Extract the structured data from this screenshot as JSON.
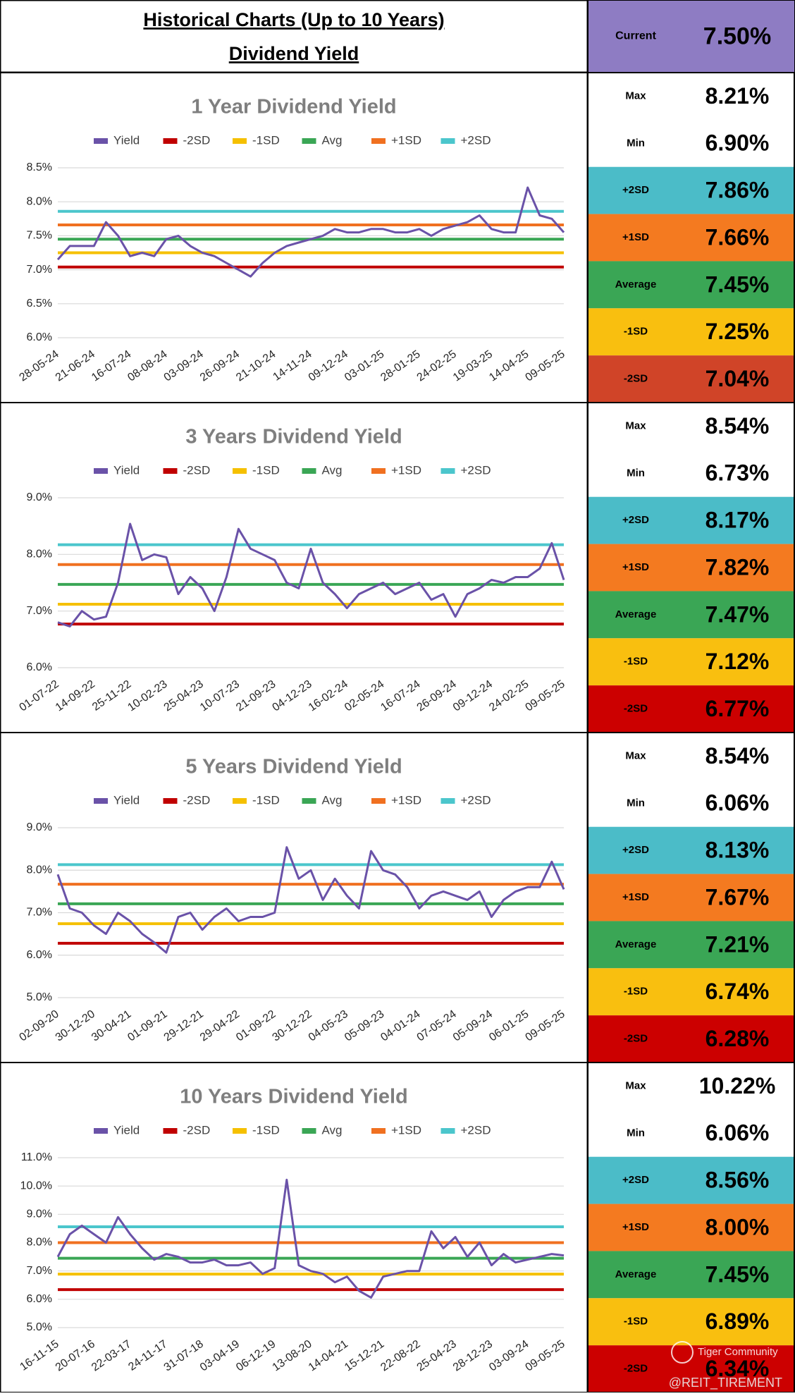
{
  "header": {
    "title": "Historical Charts (Up to 10 Years)",
    "subtitle": "Dividend Yield",
    "current": {
      "label": "Current",
      "value": 7.5,
      "value_label": "7.50%",
      "color": "#8e7cc3"
    }
  },
  "chart_data": [
    {
      "type": "line",
      "title": "1 Year Dividend Yield",
      "categories": [
        "28-05-24",
        null,
        null,
        "21-06-24",
        null,
        null,
        "16-07-24",
        null,
        null,
        "08-08-24",
        null,
        null,
        "03-09-24",
        null,
        null,
        "26-09-24",
        null,
        null,
        "21-10-24",
        null,
        null,
        "14-11-24",
        null,
        null,
        "09-12-24",
        null,
        null,
        "03-01-25",
        null,
        null,
        "28-01-25",
        null,
        null,
        "24-02-25",
        null,
        null,
        "19-03-25",
        null,
        null,
        "14-04-25",
        null,
        null,
        "09-05-25"
      ],
      "series": [
        {
          "name": "Yield",
          "color": "#6a52a8",
          "values": [
            7.15,
            7.35,
            7.35,
            7.35,
            7.7,
            7.5,
            7.2,
            7.25,
            7.2,
            7.45,
            7.5,
            7.35,
            7.25,
            7.2,
            7.1,
            7.0,
            6.9,
            7.1,
            7.25,
            7.35,
            7.4,
            7.45,
            7.5,
            7.6,
            7.55,
            7.55,
            7.6,
            7.6,
            7.55,
            7.55,
            7.6,
            7.5,
            7.6,
            7.65,
            7.7,
            7.8,
            7.6,
            7.55,
            7.55,
            8.21,
            7.8,
            7.75,
            7.55
          ]
        }
      ],
      "reference_lines": [
        {
          "name": "-2SD",
          "table_label": "-2SD",
          "color": "#c00000",
          "cell_color": "#d04428",
          "value": 7.04,
          "value_label": "7.04%"
        },
        {
          "name": "-1SD",
          "table_label": "-1SD",
          "color": "#f5c000",
          "cell_color": "#f9bf0f",
          "value": 7.25,
          "value_label": "7.25%"
        },
        {
          "name": "Avg",
          "table_label": "Average",
          "color": "#3aa655",
          "cell_color": "#3aa655",
          "value": 7.45,
          "value_label": "7.45%"
        },
        {
          "name": "+1SD",
          "table_label": "+1SD",
          "color": "#f07020",
          "cell_color": "#f47a20",
          "value": 7.66,
          "value_label": "7.66%"
        },
        {
          "name": "+2SD",
          "table_label": "+2SD",
          "color": "#4bc6cc",
          "cell_color": "#4bbcc8",
          "value": 7.86,
          "value_label": "7.86%"
        }
      ],
      "stats": [
        {
          "label": "Max",
          "value": 8.21,
          "value_label": "8.21%"
        },
        {
          "label": "Min",
          "value": 6.9,
          "value_label": "6.90%"
        }
      ],
      "ylim": [
        6,
        8.5
      ],
      "yticks": [
        {
          "value": 6,
          "label": "6.0%"
        },
        {
          "value": 6.5,
          "label": "6.5%"
        },
        {
          "value": 7,
          "label": "7.0%"
        },
        {
          "value": 7.5,
          "label": "7.5%"
        },
        {
          "value": 8,
          "label": "8.0%"
        },
        {
          "value": 8.5,
          "label": "8.5%"
        }
      ],
      "grid": true
    },
    {
      "type": "line",
      "title": "3 Years Dividend Yield",
      "categories": [
        "01-07-22",
        null,
        null,
        "14-09-22",
        null,
        null,
        "25-11-22",
        null,
        null,
        "10-02-23",
        null,
        null,
        "25-04-23",
        null,
        null,
        "10-07-23",
        null,
        null,
        "21-09-23",
        null,
        null,
        "04-12-23",
        null,
        null,
        "16-02-24",
        null,
        null,
        "02-05-24",
        null,
        null,
        "16-07-24",
        null,
        null,
        "26-09-24",
        null,
        null,
        "09-12-24",
        null,
        null,
        "24-02-25",
        null,
        null,
        "09-05-25"
      ],
      "series": [
        {
          "name": "Yield",
          "color": "#6a52a8",
          "values": [
            6.8,
            6.73,
            7.0,
            6.85,
            6.9,
            7.5,
            8.54,
            7.9,
            8.0,
            7.95,
            7.3,
            7.6,
            7.4,
            7.0,
            7.6,
            8.45,
            8.1,
            8.0,
            7.9,
            7.5,
            7.4,
            8.1,
            7.5,
            7.3,
            7.05,
            7.3,
            7.4,
            7.5,
            7.3,
            7.4,
            7.5,
            7.2,
            7.3,
            6.9,
            7.3,
            7.4,
            7.55,
            7.5,
            7.6,
            7.6,
            7.75,
            8.2,
            7.55
          ]
        }
      ],
      "reference_lines": [
        {
          "name": "-2SD",
          "table_label": "-2SD",
          "color": "#c00000",
          "cell_color": "#cc0000",
          "value": 6.77,
          "value_label": "6.77%"
        },
        {
          "name": "-1SD",
          "table_label": "-1SD",
          "color": "#f5c000",
          "cell_color": "#f9bf0f",
          "value": 7.12,
          "value_label": "7.12%"
        },
        {
          "name": "Avg",
          "table_label": "Average",
          "color": "#3aa655",
          "cell_color": "#3aa655",
          "value": 7.47,
          "value_label": "7.47%"
        },
        {
          "name": "+1SD",
          "table_label": "+1SD",
          "color": "#f07020",
          "cell_color": "#f47a20",
          "value": 7.82,
          "value_label": "7.82%"
        },
        {
          "name": "+2SD",
          "table_label": "+2SD",
          "color": "#4bc6cc",
          "cell_color": "#4bbcc8",
          "value": 8.17,
          "value_label": "8.17%"
        }
      ],
      "stats": [
        {
          "label": "Max",
          "value": 8.54,
          "value_label": "8.54%"
        },
        {
          "label": "Min",
          "value": 6.73,
          "value_label": "6.73%"
        }
      ],
      "ylim": [
        6,
        9
      ],
      "yticks": [
        {
          "value": 6,
          "label": "6.0%"
        },
        {
          "value": 7,
          "label": "7.0%"
        },
        {
          "value": 8,
          "label": "8.0%"
        },
        {
          "value": 9,
          "label": "9.0%"
        }
      ],
      "grid": true
    },
    {
      "type": "line",
      "title": "5 Years Dividend Yield",
      "categories": [
        "02-09-20",
        null,
        null,
        "30-12-20",
        null,
        null,
        "30-04-21",
        null,
        null,
        "01-09-21",
        null,
        null,
        "29-12-21",
        null,
        null,
        "29-04-22",
        null,
        null,
        "01-09-22",
        null,
        null,
        "30-12-22",
        null,
        null,
        "04-05-23",
        null,
        null,
        "05-09-23",
        null,
        null,
        "04-01-24",
        null,
        null,
        "07-05-24",
        null,
        null,
        "05-09-24",
        null,
        null,
        "06-01-25",
        null,
        null,
        "09-05-25"
      ],
      "series": [
        {
          "name": "Yield",
          "color": "#6a52a8",
          "values": [
            7.9,
            7.1,
            7.0,
            6.7,
            6.5,
            7.0,
            6.8,
            6.5,
            6.3,
            6.06,
            6.9,
            7.0,
            6.6,
            6.9,
            7.1,
            6.8,
            6.9,
            6.9,
            7.0,
            8.54,
            7.8,
            8.0,
            7.3,
            7.8,
            7.4,
            7.1,
            8.45,
            8.0,
            7.9,
            7.6,
            7.1,
            7.4,
            7.5,
            7.4,
            7.3,
            7.5,
            6.9,
            7.3,
            7.5,
            7.6,
            7.6,
            8.2,
            7.55
          ]
        }
      ],
      "reference_lines": [
        {
          "name": "-2SD",
          "table_label": "-2SD",
          "color": "#c00000",
          "cell_color": "#cc0000",
          "value": 6.28,
          "value_label": "6.28%"
        },
        {
          "name": "-1SD",
          "table_label": "-1SD",
          "color": "#f5c000",
          "cell_color": "#f9bf0f",
          "value": 6.74,
          "value_label": "6.74%"
        },
        {
          "name": "Avg",
          "table_label": "Average",
          "color": "#3aa655",
          "cell_color": "#3aa655",
          "value": 7.21,
          "value_label": "7.21%"
        },
        {
          "name": "+1SD",
          "table_label": "+1SD",
          "color": "#f07020",
          "cell_color": "#f47a20",
          "value": 7.67,
          "value_label": "7.67%"
        },
        {
          "name": "+2SD",
          "table_label": "+2SD",
          "color": "#4bc6cc",
          "cell_color": "#4bbcc8",
          "value": 8.13,
          "value_label": "8.13%"
        }
      ],
      "stats": [
        {
          "label": "Max",
          "value": 8.54,
          "value_label": "8.54%"
        },
        {
          "label": "Min",
          "value": 6.06,
          "value_label": "6.06%"
        }
      ],
      "ylim": [
        5,
        9
      ],
      "yticks": [
        {
          "value": 5,
          "label": "5.0%"
        },
        {
          "value": 6,
          "label": "6.0%"
        },
        {
          "value": 7,
          "label": "7.0%"
        },
        {
          "value": 8,
          "label": "8.0%"
        },
        {
          "value": 9,
          "label": "9.0%"
        }
      ],
      "grid": true
    },
    {
      "type": "line",
      "title": "10 Years Dividend Yield",
      "categories": [
        "16-11-15",
        null,
        null,
        "20-07-16",
        null,
        null,
        "22-03-17",
        null,
        null,
        "24-11-17",
        null,
        null,
        "31-07-18",
        null,
        null,
        "03-04-19",
        null,
        null,
        "06-12-19",
        null,
        null,
        "13-08-20",
        null,
        null,
        "14-04-21",
        null,
        null,
        "15-12-21",
        null,
        null,
        "22-08-22",
        null,
        null,
        "25-04-23",
        null,
        null,
        "28-12-23",
        null,
        null,
        "03-09-24",
        null,
        null,
        "09-05-25"
      ],
      "series": [
        {
          "name": "Yield",
          "color": "#6a52a8",
          "values": [
            7.5,
            8.3,
            8.6,
            8.3,
            8.0,
            8.9,
            8.3,
            7.8,
            7.4,
            7.6,
            7.5,
            7.3,
            7.3,
            7.4,
            7.2,
            7.2,
            7.3,
            6.9,
            7.1,
            10.22,
            7.2,
            7.0,
            6.9,
            6.6,
            6.8,
            6.3,
            6.06,
            6.8,
            6.9,
            7.0,
            7.0,
            8.4,
            7.8,
            8.2,
            7.5,
            8.0,
            7.2,
            7.6,
            7.3,
            7.4,
            7.5,
            7.6,
            7.55
          ]
        }
      ],
      "reference_lines": [
        {
          "name": "-2SD",
          "table_label": "-2SD",
          "color": "#c00000",
          "cell_color": "#cc0000",
          "value": 6.34,
          "value_label": "6.34%"
        },
        {
          "name": "-1SD",
          "table_label": "-1SD",
          "color": "#f5c000",
          "cell_color": "#f9bf0f",
          "value": 6.89,
          "value_label": "6.89%"
        },
        {
          "name": "Avg",
          "table_label": "Average",
          "color": "#3aa655",
          "cell_color": "#3aa655",
          "value": 7.45,
          "value_label": "7.45%"
        },
        {
          "name": "+1SD",
          "table_label": "+1SD",
          "color": "#f07020",
          "cell_color": "#f47a20",
          "value": 8.0,
          "value_label": "8.00%"
        },
        {
          "name": "+2SD",
          "table_label": "+2SD",
          "color": "#4bc6cc",
          "cell_color": "#4bbcc8",
          "value": 8.56,
          "value_label": "8.56%"
        }
      ],
      "stats": [
        {
          "label": "Max",
          "value": 10.22,
          "value_label": "10.22%"
        },
        {
          "label": "Min",
          "value": 6.06,
          "value_label": "6.06%"
        }
      ],
      "ylim": [
        5,
        11
      ],
      "yticks": [
        {
          "value": 5,
          "label": "5.0%"
        },
        {
          "value": 6,
          "label": "6.0%"
        },
        {
          "value": 7,
          "label": "7.0%"
        },
        {
          "value": 8,
          "label": "8.0%"
        },
        {
          "value": 9,
          "label": "9.0%"
        },
        {
          "value": 10,
          "label": "10.0%"
        },
        {
          "value": 11,
          "label": "11.0%"
        }
      ],
      "grid": true
    }
  ],
  "watermark": {
    "brand": "Tiger Community",
    "handle": "@REIT_TIREMENT"
  }
}
